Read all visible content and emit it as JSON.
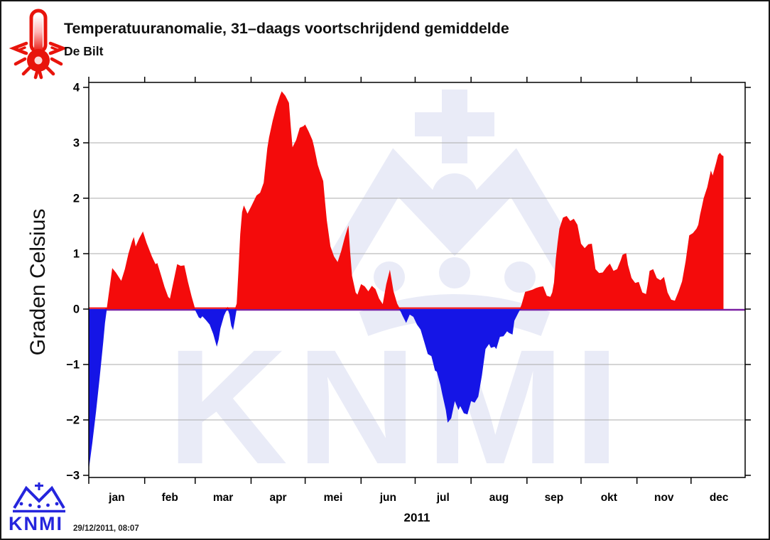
{
  "header": {
    "title": "Temperatuuranomalie, 31–daags voortschrijdend gemiddelde",
    "subtitle": "De Bilt"
  },
  "watermark": {
    "text": "KNMI"
  },
  "footer": {
    "logo_text": "KNMI",
    "timestamp": "29/12/2011, 08:07"
  },
  "colors": {
    "positive": "#f40b0b",
    "negative": "#1515e6",
    "zero_line": "#7a1fa2",
    "grid": "#ababab",
    "frame": "#000000",
    "watermark": "#e9ebf7",
    "logo_blue": "#2525dd",
    "icon_red": "#e8140c"
  },
  "chart_data": {
    "type": "area",
    "title": "Temperatuuranomalie, 31–daags voortschrijdend gemiddelde",
    "subtitle": "De Bilt",
    "ylabel": "Graden Celsius",
    "xlabel_year": "2011",
    "ylim": [
      -3,
      4
    ],
    "yticks": [
      -3,
      -2,
      -1,
      0,
      1,
      2,
      3,
      4
    ],
    "gridlines": [
      -2,
      -1,
      1,
      2,
      3
    ],
    "grid": "on",
    "month_labels": [
      "jan",
      "feb",
      "mar",
      "apr",
      "mei",
      "jun",
      "jul",
      "aug",
      "sep",
      "okt",
      "nov",
      "dec"
    ],
    "month_days": [
      31,
      28,
      31,
      30,
      31,
      30,
      31,
      31,
      30,
      31,
      30,
      31
    ],
    "series_name": "temperature anomaly (deg C), 31-day running mean",
    "x_unit": "day_of_year",
    "points": [
      [
        1,
        -2.9
      ],
      [
        3,
        -2.4
      ],
      [
        5,
        -1.85
      ],
      [
        7,
        -1.25
      ],
      [
        9,
        -0.6
      ],
      [
        10,
        -0.25
      ],
      [
        11,
        0.02
      ],
      [
        13,
        0.5
      ],
      [
        14,
        0.74
      ],
      [
        16,
        0.66
      ],
      [
        19,
        0.51
      ],
      [
        21,
        0.72
      ],
      [
        23,
        1.0
      ],
      [
        25,
        1.22
      ],
      [
        26,
        1.3
      ],
      [
        27,
        1.13
      ],
      [
        29,
        1.28
      ],
      [
        31,
        1.4
      ],
      [
        33,
        1.2
      ],
      [
        36,
        0.95
      ],
      [
        38,
        0.81
      ],
      [
        39,
        0.83
      ],
      [
        41,
        0.62
      ],
      [
        43,
        0.4
      ],
      [
        45,
        0.22
      ],
      [
        46,
        0.19
      ],
      [
        48,
        0.5
      ],
      [
        50,
        0.81
      ],
      [
        52,
        0.78
      ],
      [
        54,
        0.79
      ],
      [
        56,
        0.49
      ],
      [
        58,
        0.23
      ],
      [
        60,
        -0.02
      ],
      [
        62,
        -0.15
      ],
      [
        63,
        -0.17
      ],
      [
        64,
        -0.13
      ],
      [
        66,
        -0.2
      ],
      [
        68,
        -0.28
      ],
      [
        70,
        -0.45
      ],
      [
        72,
        -0.68
      ],
      [
        73,
        -0.55
      ],
      [
        74,
        -0.35
      ],
      [
        76,
        -0.12
      ],
      [
        77,
        -0.05
      ],
      [
        78,
        0.04
      ],
      [
        79,
        -0.1
      ],
      [
        80,
        -0.3
      ],
      [
        81,
        -0.38
      ],
      [
        82,
        -0.2
      ],
      [
        83,
        0.1
      ],
      [
        84,
        0.7
      ],
      [
        85,
        1.35
      ],
      [
        86,
        1.75
      ],
      [
        87,
        1.87
      ],
      [
        88,
        1.8
      ],
      [
        89,
        1.72
      ],
      [
        91,
        1.85
      ],
      [
        94,
        2.05
      ],
      [
        96,
        2.1
      ],
      [
        98,
        2.28
      ],
      [
        100,
        2.9
      ],
      [
        101,
        3.1
      ],
      [
        103,
        3.4
      ],
      [
        105,
        3.65
      ],
      [
        107,
        3.85
      ],
      [
        108,
        3.93
      ],
      [
        110,
        3.85
      ],
      [
        112,
        3.72
      ],
      [
        113,
        3.3
      ],
      [
        114,
        2.92
      ],
      [
        116,
        3.05
      ],
      [
        118,
        3.27
      ],
      [
        120,
        3.3
      ],
      [
        121,
        3.33
      ],
      [
        123,
        3.2
      ],
      [
        125,
        3.05
      ],
      [
        126,
        2.92
      ],
      [
        128,
        2.6
      ],
      [
        130,
        2.4
      ],
      [
        131,
        2.31
      ],
      [
        132,
        1.95
      ],
      [
        133,
        1.6
      ],
      [
        135,
        1.13
      ],
      [
        137,
        0.95
      ],
      [
        139,
        0.85
      ],
      [
        141,
        1.05
      ],
      [
        143,
        1.3
      ],
      [
        145,
        1.51
      ],
      [
        146,
        1.0
      ],
      [
        147,
        0.6
      ],
      [
        149,
        0.3
      ],
      [
        150,
        0.26
      ],
      [
        152,
        0.45
      ],
      [
        154,
        0.41
      ],
      [
        156,
        0.32
      ],
      [
        158,
        0.42
      ],
      [
        160,
        0.36
      ],
      [
        162,
        0.19
      ],
      [
        164,
        0.09
      ],
      [
        166,
        0.45
      ],
      [
        168,
        0.71
      ],
      [
        170,
        0.32
      ],
      [
        172,
        0.1
      ],
      [
        173,
        0.04
      ],
      [
        174,
        -0.05
      ],
      [
        175,
        -0.12
      ],
      [
        177,
        -0.25
      ],
      [
        179,
        -0.1
      ],
      [
        181,
        -0.14
      ],
      [
        183,
        -0.28
      ],
      [
        185,
        -0.37
      ],
      [
        187,
        -0.59
      ],
      [
        189,
        -0.81
      ],
      [
        191,
        -0.85
      ],
      [
        193,
        -1.11
      ],
      [
        194,
        -1.13
      ],
      [
        196,
        -1.37
      ],
      [
        197,
        -1.53
      ],
      [
        199,
        -1.82
      ],
      [
        200,
        -2.05
      ],
      [
        202,
        -1.97
      ],
      [
        204,
        -1.66
      ],
      [
        206,
        -1.82
      ],
      [
        207,
        -1.75
      ],
      [
        209,
        -1.88
      ],
      [
        211,
        -1.9
      ],
      [
        213,
        -1.66
      ],
      [
        215,
        -1.69
      ],
      [
        217,
        -1.58
      ],
      [
        219,
        -1.2
      ],
      [
        221,
        -0.72
      ],
      [
        223,
        -0.63
      ],
      [
        224,
        -0.7
      ],
      [
        226,
        -0.68
      ],
      [
        227,
        -0.72
      ],
      [
        229,
        -0.5
      ],
      [
        231,
        -0.49
      ],
      [
        233,
        -0.4
      ],
      [
        234,
        -0.43
      ],
      [
        236,
        -0.46
      ],
      [
        237,
        -0.21
      ],
      [
        239,
        -0.08
      ],
      [
        240,
        -0.02
      ],
      [
        241,
        0.08
      ],
      [
        243,
        0.31
      ],
      [
        245,
        0.33
      ],
      [
        247,
        0.35
      ],
      [
        249,
        0.38
      ],
      [
        251,
        0.4
      ],
      [
        253,
        0.41
      ],
      [
        255,
        0.24
      ],
      [
        257,
        0.22
      ],
      [
        258,
        0.3
      ],
      [
        259,
        0.48
      ],
      [
        260,
        0.91
      ],
      [
        261,
        1.2
      ],
      [
        262,
        1.45
      ],
      [
        264,
        1.65
      ],
      [
        266,
        1.68
      ],
      [
        268,
        1.59
      ],
      [
        270,
        1.63
      ],
      [
        272,
        1.52
      ],
      [
        273,
        1.35
      ],
      [
        274,
        1.18
      ],
      [
        276,
        1.1
      ],
      [
        278,
        1.17
      ],
      [
        280,
        1.18
      ],
      [
        281,
        0.95
      ],
      [
        282,
        0.72
      ],
      [
        284,
        0.65
      ],
      [
        286,
        0.66
      ],
      [
        288,
        0.75
      ],
      [
        290,
        0.82
      ],
      [
        292,
        0.69
      ],
      [
        294,
        0.72
      ],
      [
        296,
        0.88
      ],
      [
        297,
        0.98
      ],
      [
        299,
        1.01
      ],
      [
        300,
        0.8
      ],
      [
        302,
        0.56
      ],
      [
        304,
        0.47
      ],
      [
        306,
        0.49
      ],
      [
        308,
        0.3
      ],
      [
        310,
        0.27
      ],
      [
        311,
        0.45
      ],
      [
        312,
        0.69
      ],
      [
        314,
        0.72
      ],
      [
        316,
        0.56
      ],
      [
        318,
        0.52
      ],
      [
        320,
        0.58
      ],
      [
        322,
        0.3
      ],
      [
        324,
        0.17
      ],
      [
        326,
        0.15
      ],
      [
        328,
        0.31
      ],
      [
        330,
        0.5
      ],
      [
        332,
        0.86
      ],
      [
        334,
        1.33
      ],
      [
        336,
        1.37
      ],
      [
        338,
        1.45
      ],
      [
        339,
        1.52
      ],
      [
        340,
        1.7
      ],
      [
        341,
        1.85
      ],
      [
        342,
        2.0
      ],
      [
        344,
        2.2
      ],
      [
        345,
        2.35
      ],
      [
        346,
        2.5
      ],
      [
        347,
        2.41
      ],
      [
        349,
        2.65
      ],
      [
        350,
        2.78
      ],
      [
        351,
        2.82
      ],
      [
        352,
        2.78
      ],
      [
        353,
        2.76
      ]
    ]
  }
}
